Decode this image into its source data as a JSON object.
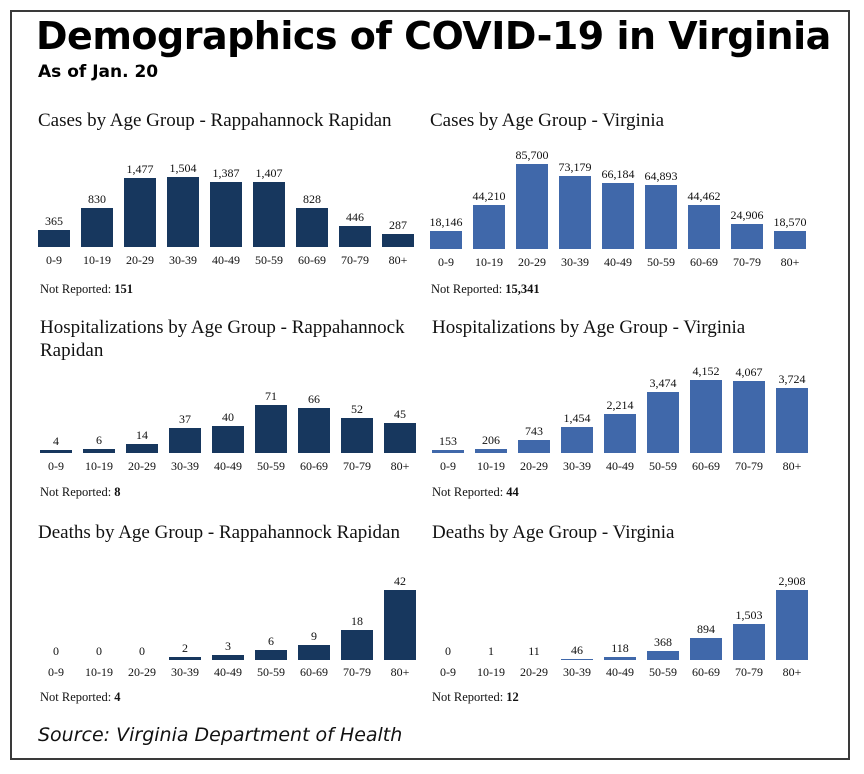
{
  "title": "Demographics of COVID-19 in Virginia",
  "subtitle": "As of Jan. 20",
  "source": "Source: Virginia Department of Health",
  "not_reported_label": "Not Reported:",
  "colors": {
    "rr": "#17375e",
    "va": "#4068aa"
  },
  "chart_data": [
    {
      "id": "cases-rr",
      "type": "bar",
      "title": "Cases by Age Group - Rappahannock Rapidan",
      "categories": [
        "0-9",
        "10-19",
        "20-29",
        "30-39",
        "40-49",
        "50-59",
        "60-69",
        "70-79",
        "80+"
      ],
      "values": [
        365,
        830,
        1477,
        1504,
        1387,
        1407,
        828,
        446,
        287
      ],
      "value_labels": [
        "365",
        "830",
        "1,477",
        "1,504",
        "1,387",
        "1,407",
        "828",
        "446",
        "287"
      ],
      "not_reported": "151",
      "ylim": [
        0,
        1504
      ]
    },
    {
      "id": "cases-va",
      "type": "bar",
      "title": "Cases by Age Group - Virginia",
      "categories": [
        "0-9",
        "10-19",
        "20-29",
        "30-39",
        "40-49",
        "50-59",
        "60-69",
        "70-79",
        "80+"
      ],
      "values": [
        18146,
        44210,
        85700,
        73179,
        66184,
        64893,
        44462,
        24906,
        18570
      ],
      "value_labels": [
        "18,146",
        "44,210",
        "85,700",
        "73,179",
        "66,184",
        "64,893",
        "44,462",
        "24,906",
        "18,570"
      ],
      "not_reported": "15,341",
      "ylim": [
        0,
        85700
      ]
    },
    {
      "id": "hosp-rr",
      "type": "bar",
      "title": "Hospitalizations by Age Group - Rappahannock Rapidan",
      "categories": [
        "0-9",
        "10-19",
        "20-29",
        "30-39",
        "40-49",
        "50-59",
        "60-69",
        "70-79",
        "80+"
      ],
      "values": [
        4,
        6,
        14,
        37,
        40,
        71,
        66,
        52,
        45
      ],
      "value_labels": [
        "4",
        "6",
        "14",
        "37",
        "40",
        "71",
        "66",
        "52",
        "45"
      ],
      "not_reported": "8",
      "ylim": [
        0,
        71
      ]
    },
    {
      "id": "hosp-va",
      "type": "bar",
      "title": "Hospitalizations by Age Group - Virginia",
      "categories": [
        "0-9",
        "10-19",
        "20-29",
        "30-39",
        "40-49",
        "50-59",
        "60-69",
        "70-79",
        "80+"
      ],
      "values": [
        153,
        206,
        743,
        1454,
        2214,
        3474,
        4152,
        4067,
        3724
      ],
      "value_labels": [
        "153",
        "206",
        "743",
        "1,454",
        "2,214",
        "3,474",
        "4,152",
        "4,067",
        "3,724"
      ],
      "not_reported": "44",
      "ylim": [
        0,
        4152
      ]
    },
    {
      "id": "deaths-rr",
      "type": "bar",
      "title": "Deaths by Age Group - Rappahannock Rapidan",
      "categories": [
        "0-9",
        "10-19",
        "20-29",
        "30-39",
        "40-49",
        "50-59",
        "60-69",
        "70-79",
        "80+"
      ],
      "values": [
        0,
        0,
        0,
        2,
        3,
        6,
        9,
        18,
        42
      ],
      "value_labels": [
        "0",
        "0",
        "0",
        "2",
        "3",
        "6",
        "9",
        "18",
        "42"
      ],
      "not_reported": "4",
      "ylim": [
        0,
        42
      ]
    },
    {
      "id": "deaths-va",
      "type": "bar",
      "title": "Deaths by Age Group - Virginia",
      "categories": [
        "0-9",
        "10-19",
        "20-29",
        "30-39",
        "40-49",
        "50-59",
        "60-69",
        "70-79",
        "80+"
      ],
      "values": [
        0,
        1,
        11,
        46,
        118,
        368,
        894,
        1503,
        2908
      ],
      "value_labels": [
        "0",
        "1",
        "11",
        "46",
        "118",
        "368",
        "894",
        "1,503",
        "2,908"
      ],
      "not_reported": "12",
      "ylim": [
        0,
        2908
      ]
    }
  ]
}
